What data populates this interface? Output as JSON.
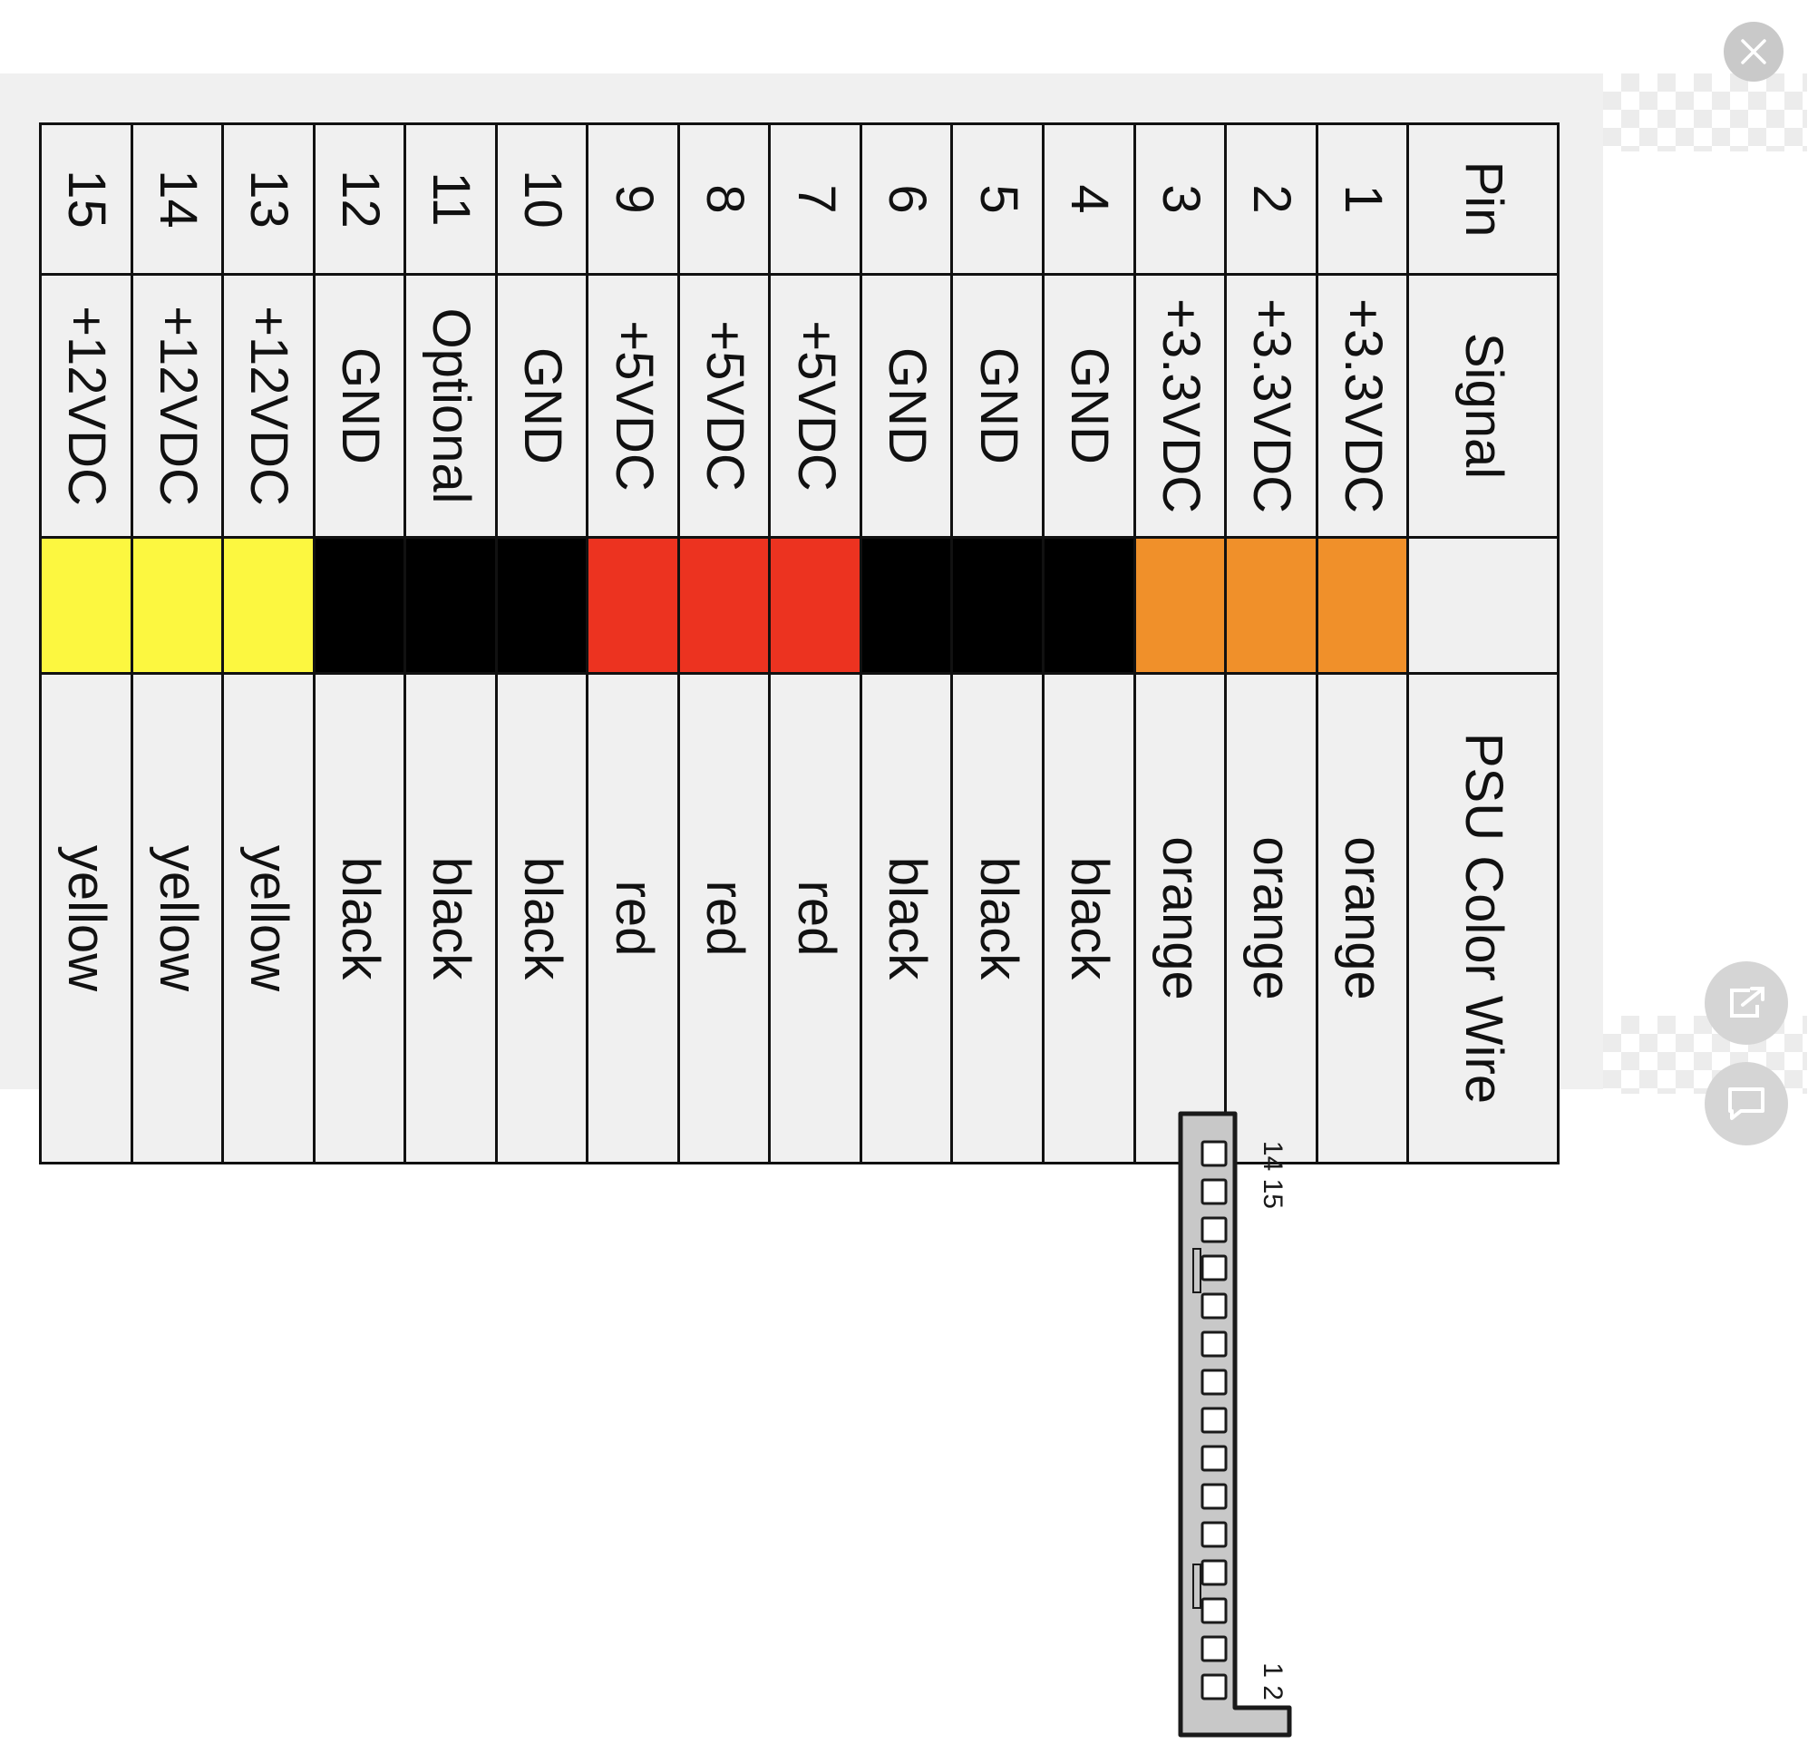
{
  "table": {
    "headers": {
      "pin": "Pin",
      "signal": "Signal",
      "color": "",
      "wire": "PSU Color Wire"
    },
    "rows": [
      {
        "pin": "1",
        "signal": "+3.3VDC",
        "swatch": "#f0902a",
        "wire": "orange"
      },
      {
        "pin": "2",
        "signal": "+3.3VDC",
        "swatch": "#f0902a",
        "wire": "orange"
      },
      {
        "pin": "3",
        "signal": "+3.3VDC",
        "swatch": "#f0902a",
        "wire": "orange"
      },
      {
        "pin": "4",
        "signal": "GND",
        "swatch": "#000000",
        "wire": "black"
      },
      {
        "pin": "5",
        "signal": "GND",
        "swatch": "#000000",
        "wire": "black"
      },
      {
        "pin": "6",
        "signal": "GND",
        "swatch": "#000000",
        "wire": "black"
      },
      {
        "pin": "7",
        "signal": "+5VDC",
        "swatch": "#ec3320",
        "wire": "red"
      },
      {
        "pin": "8",
        "signal": "+5VDC",
        "swatch": "#ec3320",
        "wire": "red"
      },
      {
        "pin": "9",
        "signal": "+5VDC",
        "swatch": "#ec3320",
        "wire": "red"
      },
      {
        "pin": "10",
        "signal": "GND",
        "swatch": "#000000",
        "wire": "black"
      },
      {
        "pin": "11",
        "signal": "Optional",
        "swatch": "#000000",
        "wire": "black"
      },
      {
        "pin": "12",
        "signal": "GND",
        "swatch": "#000000",
        "wire": "black"
      },
      {
        "pin": "13",
        "signal": "+12VDC",
        "swatch": "#fcf740",
        "wire": "yellow"
      },
      {
        "pin": "14",
        "signal": "+12VDC",
        "swatch": "#fcf740",
        "wire": "yellow"
      },
      {
        "pin": "15",
        "signal": "+12VDC",
        "swatch": "#fcf740",
        "wire": "yellow"
      }
    ]
  },
  "connector": {
    "pin_count": 15,
    "label_start": "1 2",
    "label_end": "14 15"
  },
  "buttons": {
    "close_icon": "close-icon",
    "share_icon": "share-icon",
    "comment_icon": "comment-icon"
  },
  "colors": {
    "orange": "#f0902a",
    "black": "#000000",
    "red": "#ec3320",
    "yellow": "#fcf740",
    "background": "#f0f0f0"
  }
}
